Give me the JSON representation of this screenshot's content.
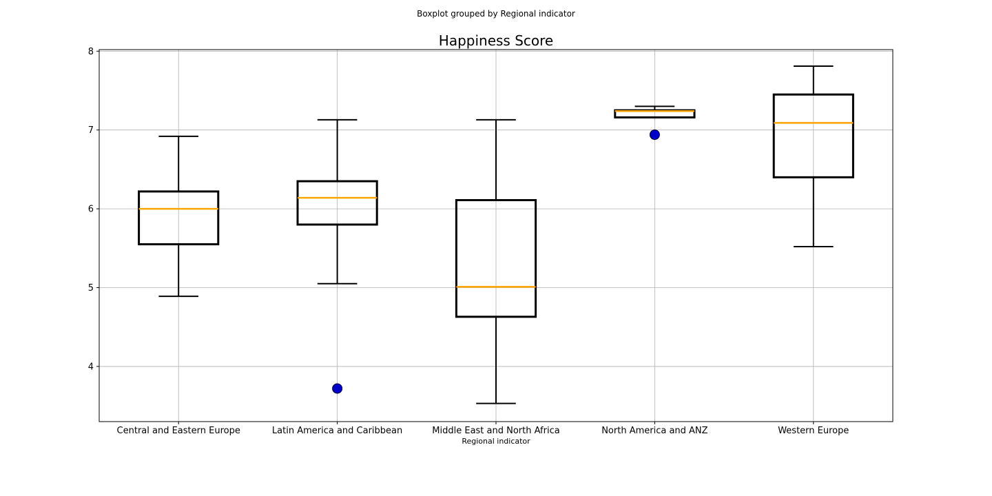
{
  "chart_data": {
    "type": "box",
    "suptitle": "Boxplot grouped by Regional indicator",
    "title": "Happiness Score",
    "xlabel": "Regional indicator",
    "ylabel": "",
    "ylim": [
      3.3,
      8.02
    ],
    "yticks": [
      4,
      5,
      6,
      7,
      8
    ],
    "grid": true,
    "colors": {
      "box": "#000000",
      "median": "#ffa500",
      "flier_fill": "#0000cd",
      "flier_edge": "#000033",
      "grid": "#b0b0b0"
    },
    "groups": [
      {
        "name": "Central and Eastern Europe",
        "whisker_low": 4.89,
        "q1": 5.55,
        "median": 6.0,
        "q3": 6.22,
        "whisker_high": 6.92,
        "outliers": []
      },
      {
        "name": "Latin America and Caribbean",
        "whisker_low": 5.05,
        "q1": 5.8,
        "median": 6.14,
        "q3": 6.35,
        "whisker_high": 7.13,
        "outliers": [
          3.72
        ]
      },
      {
        "name": "Middle East and North Africa",
        "whisker_low": 3.53,
        "q1": 4.63,
        "median": 5.01,
        "q3": 6.11,
        "whisker_high": 7.13,
        "outliers": []
      },
      {
        "name": "North America and ANZ",
        "whisker_low": 7.16,
        "q1": 7.16,
        "median": 7.24,
        "q3": 7.25,
        "whisker_high": 7.3,
        "outliers": [
          6.94
        ]
      },
      {
        "name": "Western Europe",
        "whisker_low": 5.52,
        "q1": 6.4,
        "median": 7.09,
        "q3": 7.45,
        "whisker_high": 7.81,
        "outliers": []
      }
    ]
  }
}
